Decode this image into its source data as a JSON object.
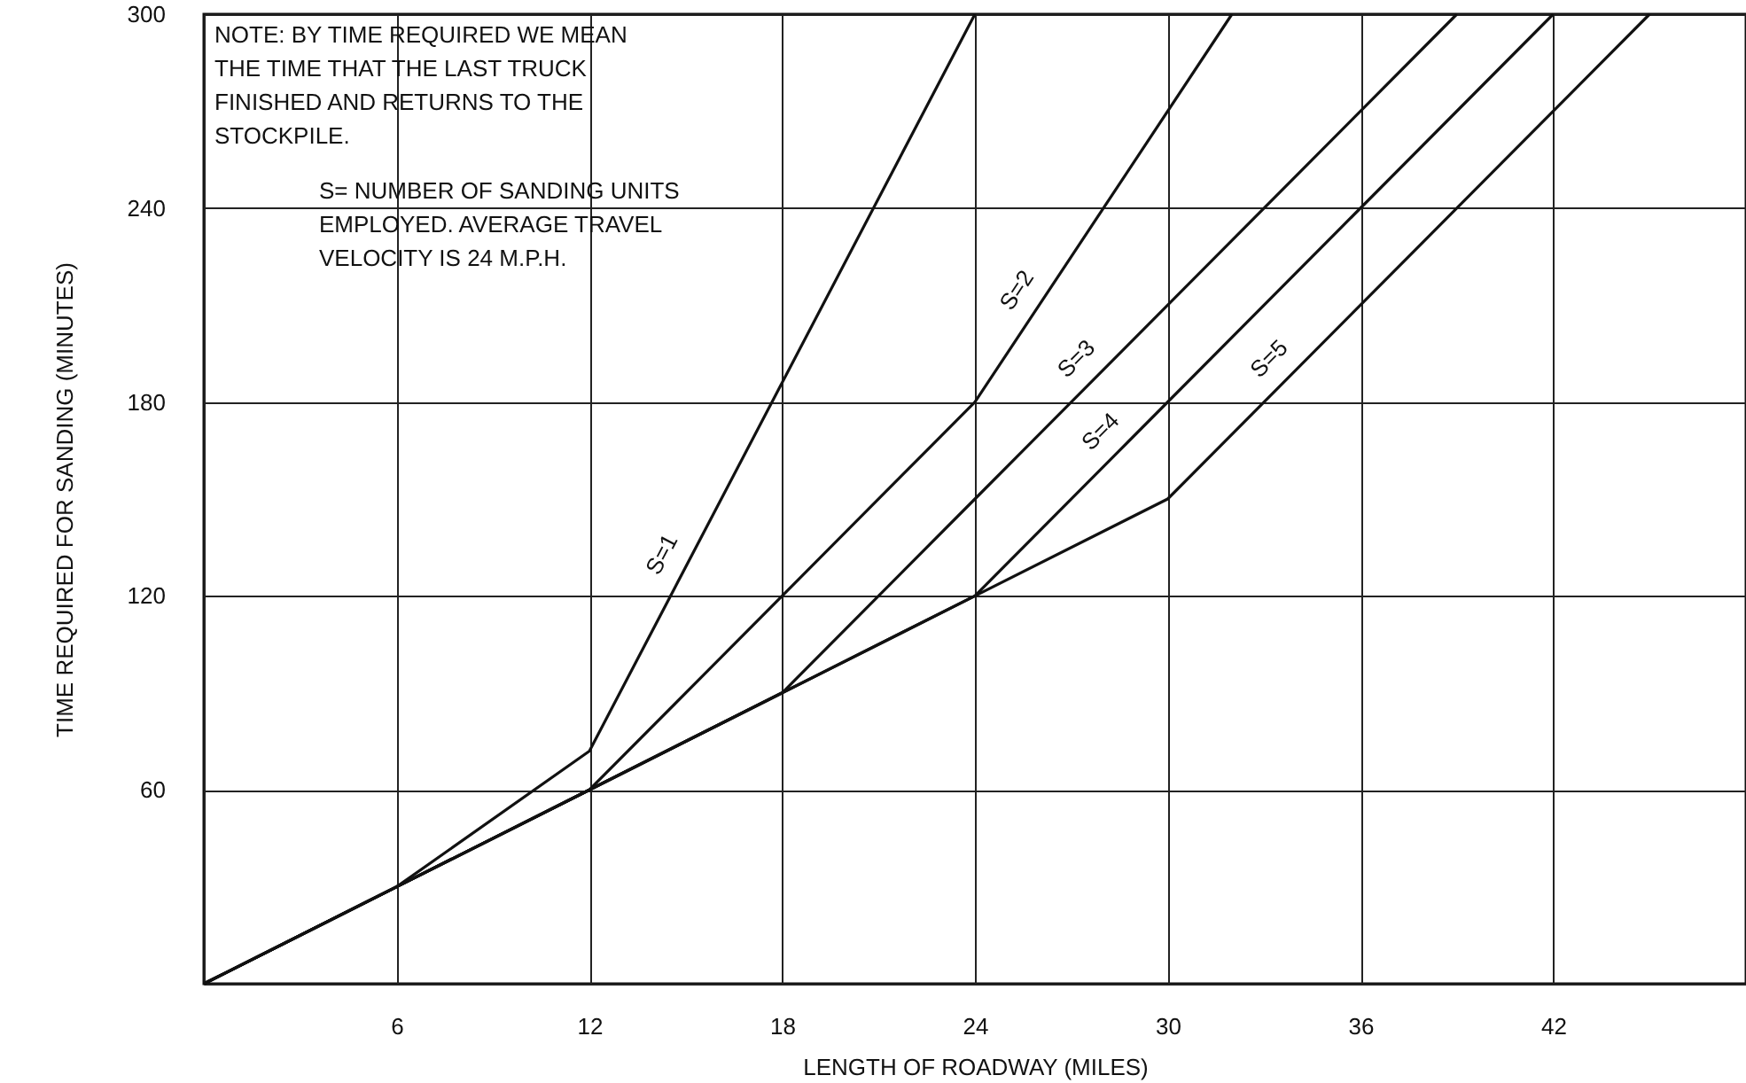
{
  "chart_data": {
    "type": "line",
    "xlabel": "LENGTH OF ROADWAY (MILES)",
    "ylabel": "TIME REQUIRED FOR SANDING (MINUTES)",
    "xlim": [
      0,
      48
    ],
    "xticks": [
      {
        "value": 0,
        "label": null
      },
      6,
      12,
      18,
      24,
      30,
      36,
      42
    ],
    "ylim": [
      0,
      300
    ],
    "yticks": [
      {
        "value": 0,
        "label": null
      },
      60,
      120,
      180,
      240,
      300
    ],
    "grid": true,
    "marker": "none",
    "line_style": "solid",
    "annotations": [
      "NOTE: BY TIME REQUIRED WE MEAN THE TIME THAT THE LAST TRUCK FINISHED AND RETURNS TO THE STOCKPILE.",
      "S= NUMBER OF SANDING UNITS EMPLOYED. AVERAGE TRAVEL VELOCITY IS 24 M.P.H."
    ],
    "series": [
      {
        "name": "S=1",
        "color": "#111111",
        "x": [
          0,
          6,
          12,
          24
        ],
        "values": [
          0,
          30,
          72,
          300
        ]
      },
      {
        "name": "S=2",
        "color": "#111111",
        "x": [
          0,
          6,
          12,
          18,
          24,
          32
        ],
        "values": [
          0,
          30,
          60,
          120,
          180,
          300
        ]
      },
      {
        "name": "S=3",
        "color": "#111111",
        "x": [
          0,
          6,
          12,
          18,
          24,
          39
        ],
        "values": [
          0,
          30,
          60,
          90,
          150,
          300
        ]
      },
      {
        "name": "S=4",
        "color": "#111111",
        "x": [
          0,
          6,
          12,
          18,
          24,
          42
        ],
        "values": [
          0,
          30,
          60,
          90,
          120,
          300
        ]
      },
      {
        "name": "S=5",
        "color": "#111111",
        "x": [
          0,
          6,
          12,
          18,
          24,
          30,
          45
        ],
        "values": [
          0,
          30,
          60,
          90,
          120,
          150,
          300
        ]
      }
    ]
  }
}
